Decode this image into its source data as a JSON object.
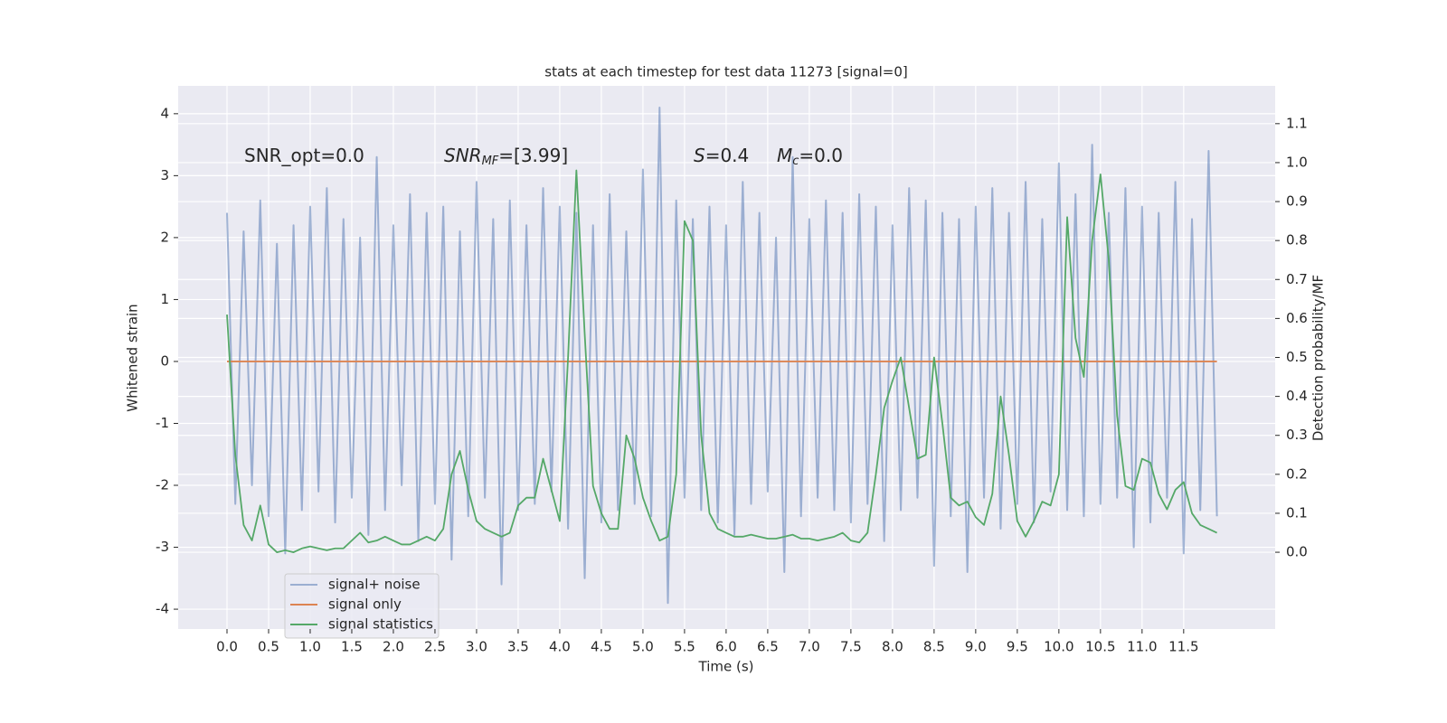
{
  "chart_data": {
    "type": "line",
    "title": "stats at each timestep for test data 11273 [signal=0]",
    "xlabel": "Time (s)",
    "ylabel": "Whitened strain",
    "y2label": "Detection probability/MF",
    "annotations": [
      [
        "SNR_opt=0.0"
      ],
      [
        "SNR",
        "MF",
        "=[3.99]"
      ],
      [
        "S",
        "=0.4"
      ],
      [
        "M",
        "c",
        "=0.0"
      ]
    ],
    "xlim": [
      -0.587,
      12.6
    ],
    "ylim": [
      -4.32,
      4.45
    ],
    "y2lim": [
      -0.197,
      1.197
    ],
    "xticks": [
      {
        "value": 0,
        "label": "0.0"
      },
      0.5,
      {
        "value": 1,
        "label": "1.0"
      },
      1.5,
      {
        "value": 2,
        "label": "2.0"
      },
      2.5,
      {
        "value": 3,
        "label": "3.0"
      },
      3.5,
      {
        "value": 4,
        "label": "4.0"
      },
      4.5,
      {
        "value": 5,
        "label": "5.0"
      },
      5.5,
      {
        "value": 6,
        "label": "6.0"
      },
      6.5,
      {
        "value": 7,
        "label": "7.0"
      },
      7.5,
      {
        "value": 8,
        "label": "8.0"
      },
      8.5,
      {
        "value": 9,
        "label": "9.0"
      },
      9.5,
      {
        "value": 10,
        "label": "10.0"
      },
      10.5,
      {
        "value": 11,
        "label": "11.0"
      },
      11.5
    ],
    "yticks": [
      -4,
      -3,
      -2,
      -1,
      0,
      1,
      2,
      3,
      4
    ],
    "y2ticks": [
      {
        "value": 0,
        "label": "0.0"
      },
      0.1,
      0.2,
      0.3,
      0.4,
      0.5,
      0.6,
      0.7,
      0.8,
      0.9,
      {
        "value": 1,
        "label": "1.0"
      },
      1.1
    ],
    "grid": true,
    "legend": "lower left",
    "x": [
      0.0,
      0.1,
      0.2,
      0.3,
      0.4,
      0.5,
      0.6,
      0.7,
      0.8,
      0.9,
      1.0,
      1.1,
      1.2,
      1.3,
      1.4,
      1.5,
      1.6,
      1.7,
      1.8,
      1.9,
      2.0,
      2.1,
      2.2,
      2.3,
      2.4,
      2.5,
      2.6,
      2.7,
      2.8,
      2.9,
      3.0,
      3.1,
      3.2,
      3.3,
      3.4,
      3.5,
      3.6,
      3.7,
      3.8,
      3.9,
      4.0,
      4.1,
      4.2,
      4.3,
      4.4,
      4.5,
      4.6,
      4.7,
      4.8,
      4.9,
      5.0,
      5.1,
      5.2,
      5.3,
      5.4,
      5.5,
      5.6,
      5.7,
      5.8,
      5.9,
      6.0,
      6.1,
      6.2,
      6.3,
      6.4,
      6.5,
      6.6,
      6.7,
      6.8,
      6.9,
      7.0,
      7.1,
      7.2,
      7.3,
      7.4,
      7.5,
      7.6,
      7.7,
      7.8,
      7.9,
      8.0,
      8.1,
      8.2,
      8.3,
      8.4,
      8.5,
      8.6,
      8.7,
      8.8,
      8.9,
      9.0,
      9.1,
      9.2,
      9.3,
      9.4,
      9.5,
      9.6,
      9.7,
      9.8,
      9.9,
      10.0,
      10.1,
      10.2,
      10.3,
      10.4,
      10.5,
      10.6,
      10.7,
      10.8,
      10.9,
      11.0,
      11.1,
      11.2,
      11.3,
      11.4,
      11.5,
      11.6,
      11.7,
      11.8,
      11.9
    ],
    "series": [
      {
        "name": "signal+ noise",
        "color": "#4c72b0",
        "values": [
          2.4,
          -2.3,
          2.1,
          -2.0,
          2.6,
          -2.5,
          1.9,
          -3.1,
          2.2,
          -2.4,
          2.5,
          -2.1,
          2.8,
          -2.6,
          2.3,
          -2.2,
          2.0,
          -2.8,
          3.3,
          -2.4,
          2.2,
          -2.0,
          2.7,
          -2.9,
          2.4,
          -2.3,
          2.5,
          -3.2,
          2.1,
          -2.5,
          2.9,
          -2.2,
          2.3,
          -3.6,
          2.6,
          -2.4,
          2.2,
          -2.3,
          2.8,
          -2.1,
          2.5,
          -2.7,
          2.4,
          -3.5,
          2.2,
          -2.6,
          2.7,
          -2.4,
          2.1,
          -2.3,
          3.1,
          -2.5,
          4.1,
          -3.9,
          2.6,
          -2.2,
          2.3,
          -2.4,
          2.5,
          -2.6,
          2.2,
          -2.8,
          2.9,
          -2.3,
          2.4,
          -2.1,
          2.0,
          -3.4,
          3.3,
          -2.5,
          2.3,
          -2.2,
          2.6,
          -2.4,
          2.4,
          -2.6,
          2.7,
          -2.3,
          2.5,
          -2.9,
          2.2,
          -2.4,
          2.8,
          -2.2,
          2.6,
          -3.3,
          2.4,
          -2.5,
          2.3,
          -3.4,
          2.5,
          -2.2,
          2.8,
          -2.7,
          2.4,
          -2.3,
          2.9,
          -2.6,
          2.3,
          -2.1,
          3.2,
          -2.4,
          2.7,
          -2.5,
          3.5,
          -2.3,
          2.4,
          -2.2,
          2.8,
          -3.0,
          2.5,
          -2.6,
          2.4,
          -2.2,
          2.9,
          -3.1,
          2.3,
          -2.4,
          3.4,
          -2.5
        ]
      },
      {
        "name": "signal only",
        "color": "#dd8452",
        "values": [
          0,
          0,
          0,
          0,
          0,
          0,
          0,
          0,
          0,
          0,
          0,
          0,
          0,
          0,
          0,
          0,
          0,
          0,
          0,
          0,
          0,
          0,
          0,
          0,
          0,
          0,
          0,
          0,
          0,
          0,
          0,
          0,
          0,
          0,
          0,
          0,
          0,
          0,
          0,
          0,
          0,
          0,
          0,
          0,
          0,
          0,
          0,
          0,
          0,
          0,
          0,
          0,
          0,
          0,
          0,
          0,
          0,
          0,
          0,
          0,
          0,
          0,
          0,
          0,
          0,
          0,
          0,
          0,
          0,
          0,
          0,
          0,
          0,
          0,
          0,
          0,
          0,
          0,
          0,
          0,
          0,
          0,
          0,
          0,
          0,
          0,
          0,
          0,
          0,
          0,
          0,
          0,
          0,
          0,
          0,
          0,
          0,
          0,
          0,
          0,
          0,
          0,
          0,
          0,
          0,
          0,
          0,
          0,
          0,
          0,
          0,
          0,
          0,
          0,
          0,
          0,
          0,
          0,
          0,
          0
        ]
      },
      {
        "name": "signal statistics",
        "color": "#55a868",
        "axis": "y2",
        "values": [
          0.61,
          0.25,
          0.07,
          0.03,
          0.12,
          0.02,
          0.0,
          0.005,
          0.0,
          0.01,
          0.015,
          0.01,
          0.005,
          0.01,
          0.01,
          0.03,
          0.05,
          0.025,
          0.03,
          0.04,
          0.03,
          0.02,
          0.02,
          0.03,
          0.04,
          0.03,
          0.06,
          0.2,
          0.26,
          0.16,
          0.08,
          0.06,
          0.05,
          0.04,
          0.05,
          0.12,
          0.14,
          0.14,
          0.24,
          0.16,
          0.08,
          0.5,
          0.98,
          0.56,
          0.17,
          0.1,
          0.06,
          0.06,
          0.3,
          0.24,
          0.14,
          0.08,
          0.03,
          0.04,
          0.2,
          0.85,
          0.8,
          0.3,
          0.1,
          0.06,
          0.05,
          0.04,
          0.04,
          0.045,
          0.04,
          0.035,
          0.035,
          0.04,
          0.045,
          0.035,
          0.035,
          0.03,
          0.035,
          0.04,
          0.05,
          0.03,
          0.025,
          0.05,
          0.2,
          0.37,
          0.44,
          0.5,
          0.37,
          0.24,
          0.25,
          0.5,
          0.33,
          0.14,
          0.12,
          0.13,
          0.09,
          0.07,
          0.15,
          0.4,
          0.25,
          0.08,
          0.04,
          0.08,
          0.13,
          0.12,
          0.2,
          0.86,
          0.55,
          0.45,
          0.8,
          0.97,
          0.75,
          0.35,
          0.17,
          0.16,
          0.24,
          0.23,
          0.15,
          0.11,
          0.16,
          0.18,
          0.1,
          0.07,
          0.06,
          0.05
        ]
      }
    ]
  }
}
